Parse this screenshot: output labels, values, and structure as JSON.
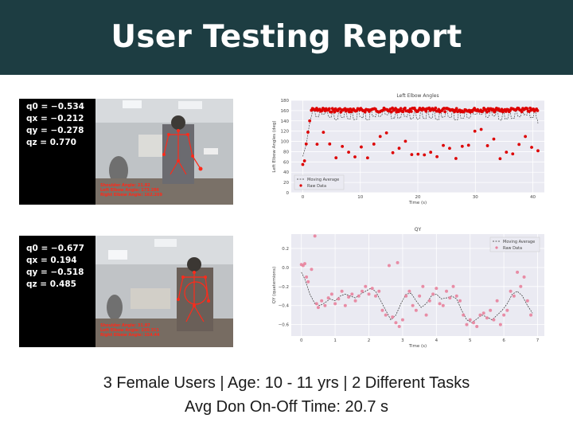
{
  "header": {
    "title": "User Testing Report"
  },
  "photos": [
    {
      "quaternion": [
        "q0 = −0.534",
        "qx = −0.212",
        "qy = −0.278",
        "qz = 0.770"
      ],
      "overlay": [
        "Shoulder Angle: 21.82",
        "Left Elbow Angle: 173.286",
        "Right Elbow Angle: 162.209"
      ]
    },
    {
      "quaternion": [
        "q0 = −0.677",
        "qx = 0.194",
        "qy = −0.518",
        "qz = 0.485"
      ],
      "overlay": [
        "Shoulder Angle: 31.87",
        "Left Elbow Angle: 150.311",
        "Right Elbow Angle: 154.44"
      ]
    }
  ],
  "chart_data": [
    {
      "type": "scatter",
      "title": "Left Elbow Angles",
      "xlabel": "Time (s)",
      "ylabel": "Left Elbow Angles (deg)",
      "xlim": [
        -2,
        42
      ],
      "ylim": [
        0,
        180
      ],
      "xticks": [
        0,
        10,
        20,
        30,
        40
      ],
      "yticks": [
        0,
        20,
        40,
        60,
        80,
        100,
        120,
        140,
        160,
        180
      ],
      "grid": true,
      "legend_position": "bottom-left",
      "series": [
        {
          "name": "Moving Average",
          "style": "dashed-line",
          "color": "#333333"
        },
        {
          "name": "Raw Data",
          "style": "points",
          "color": "#dd0000"
        }
      ],
      "pattern": {
        "high": 165,
        "low_range": [
          65,
          125
        ],
        "cycles": 36,
        "start": [
          0,
          55
        ]
      }
    },
    {
      "type": "scatter",
      "title": "QY",
      "xlabel": "Time (s)",
      "ylabel": "QY (quaternions)",
      "xlim": [
        -0.3,
        7.2
      ],
      "ylim": [
        -0.72,
        0.35
      ],
      "xticks": [
        0,
        1,
        2,
        3,
        4,
        5,
        6,
        7
      ],
      "yticks": [
        0.2,
        0.0,
        -0.2,
        -0.4,
        -0.6
      ],
      "ytick_labels": [
        "0.2",
        "0.0",
        "−0.2",
        "−0.4",
        "−0.6"
      ],
      "grid": true,
      "legend_position": "top-right",
      "series": [
        {
          "name": "Moving Average",
          "style": "dashed-line",
          "color": "#333333",
          "x": [
            0,
            0.1,
            0.25,
            0.4,
            0.55,
            0.7,
            0.85,
            1.0,
            1.15,
            1.3,
            1.45,
            1.6,
            1.75,
            1.9,
            2.05,
            2.2,
            2.35,
            2.5,
            2.65,
            2.8,
            2.95,
            3.1,
            3.25,
            3.4,
            3.55,
            3.7,
            3.85,
            4.0,
            4.15,
            4.3,
            4.45,
            4.6,
            4.75,
            4.9,
            5.05,
            5.2,
            5.35,
            5.5,
            5.65,
            5.8,
            5.95,
            6.1,
            6.25,
            6.4,
            6.55,
            6.7,
            6.85
          ],
          "y": [
            -0.05,
            -0.12,
            -0.28,
            -0.38,
            -0.4,
            -0.37,
            -0.33,
            -0.35,
            -0.3,
            -0.28,
            -0.3,
            -0.32,
            -0.28,
            -0.25,
            -0.22,
            -0.25,
            -0.35,
            -0.45,
            -0.55,
            -0.5,
            -0.38,
            -0.28,
            -0.27,
            -0.35,
            -0.42,
            -0.38,
            -0.3,
            -0.28,
            -0.33,
            -0.32,
            -0.3,
            -0.33,
            -0.45,
            -0.55,
            -0.58,
            -0.54,
            -0.5,
            -0.52,
            -0.55,
            -0.5,
            -0.45,
            -0.38,
            -0.28,
            -0.25,
            -0.3,
            -0.4,
            -0.48
          ]
        },
        {
          "name": "Raw Data",
          "style": "points",
          "color": "#e8829c",
          "x": [
            0.0,
            0.05,
            0.1,
            0.15,
            0.2,
            0.3,
            0.4,
            0.45,
            0.5,
            0.6,
            0.7,
            0.8,
            0.9,
            1.0,
            1.1,
            1.2,
            1.3,
            1.4,
            1.5,
            1.6,
            1.7,
            1.8,
            1.9,
            2.0,
            2.1,
            2.2,
            2.3,
            2.4,
            2.5,
            2.6,
            2.7,
            2.8,
            2.85,
            2.9,
            3.0,
            3.1,
            3.2,
            3.3,
            3.4,
            3.5,
            3.6,
            3.7,
            3.8,
            3.9,
            4.0,
            4.1,
            4.2,
            4.3,
            4.4,
            4.5,
            4.6,
            4.7,
            4.8,
            4.9,
            5.0,
            5.1,
            5.2,
            5.3,
            5.4,
            5.5,
            5.6,
            5.7,
            5.8,
            5.9,
            6.0,
            6.1,
            6.2,
            6.3,
            6.4,
            6.5,
            6.6,
            6.7,
            6.8
          ],
          "y": [
            0.03,
            0.02,
            0.04,
            -0.1,
            -0.15,
            -0.02,
            0.33,
            -0.38,
            -0.42,
            -0.35,
            -0.4,
            -0.32,
            -0.28,
            -0.38,
            -0.33,
            -0.25,
            -0.4,
            -0.31,
            -0.28,
            -0.35,
            -0.3,
            -0.25,
            -0.2,
            -0.28,
            -0.22,
            -0.3,
            -0.25,
            -0.45,
            -0.5,
            0.02,
            -0.52,
            -0.58,
            0.05,
            -0.62,
            -0.55,
            -0.3,
            -0.25,
            -0.4,
            -0.45,
            -0.3,
            -0.2,
            -0.5,
            -0.35,
            -0.28,
            -0.22,
            -0.38,
            -0.4,
            -0.25,
            -0.32,
            -0.2,
            -0.3,
            -0.35,
            -0.5,
            -0.6,
            -0.55,
            -0.58,
            -0.62,
            -0.5,
            -0.48,
            -0.53,
            -0.45,
            -0.55,
            -0.35,
            -0.6,
            -0.5,
            -0.45,
            -0.25,
            -0.3,
            -0.05,
            -0.2,
            -0.1,
            -0.35,
            -0.5
          ]
        }
      ]
    }
  ],
  "footer": {
    "line1": "3 Female Users | Age: 10 - 11 yrs | 2 Different Tasks",
    "line2": "Avg Don On-Off Time: 20.7 s"
  }
}
